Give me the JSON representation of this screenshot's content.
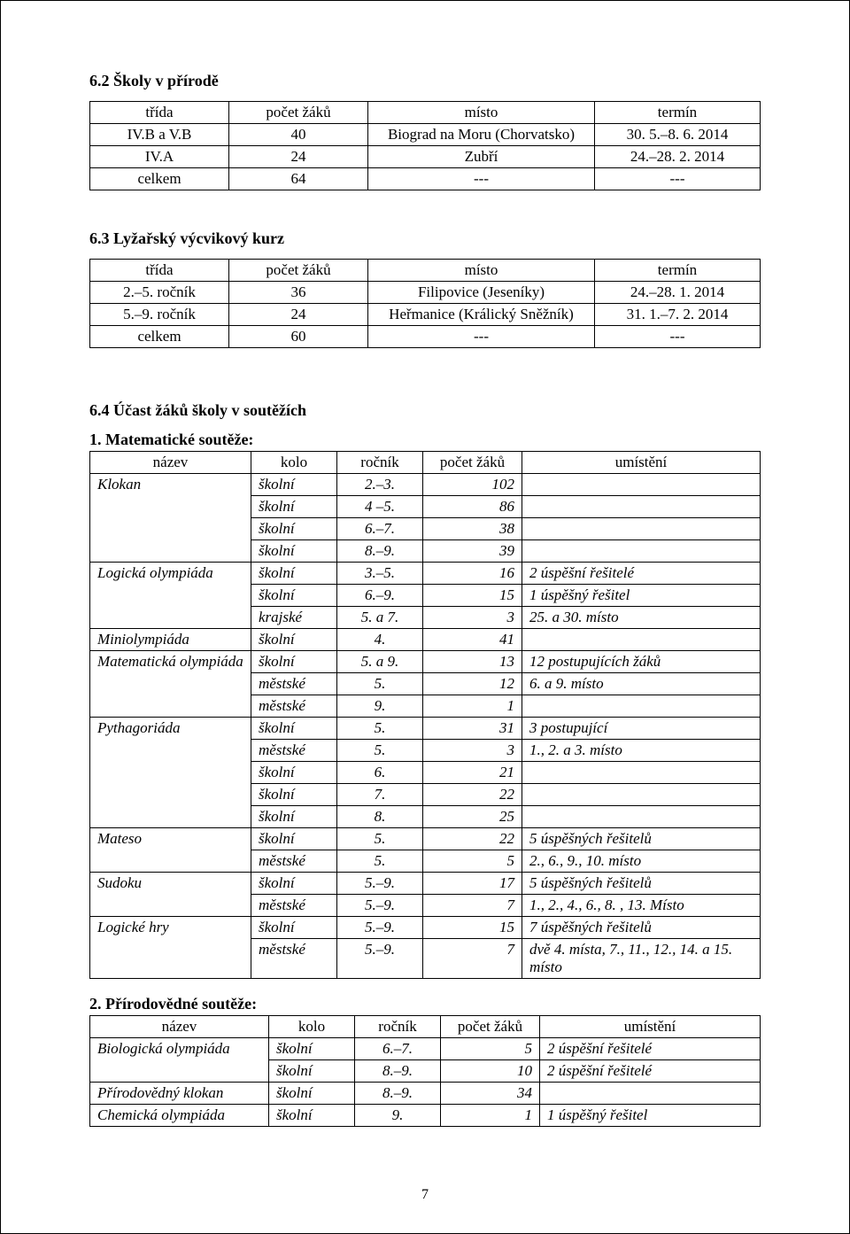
{
  "s62": {
    "title": "6.2 Školy v přírodě",
    "headers": [
      "třída",
      "počet žáků",
      "místo",
      "termín"
    ],
    "rows": [
      [
        "IV.B a V.B",
        "40",
        "Biograd na Moru (Chorvatsko)",
        "30. 5.–8. 6. 2014"
      ],
      [
        "IV.A",
        "24",
        "Zubří",
        "24.–28. 2. 2014"
      ],
      [
        "celkem",
        "64",
        "---",
        "---"
      ]
    ]
  },
  "s63": {
    "title": "6.3 Lyžařský výcvikový kurz",
    "headers": [
      "třída",
      "počet žáků",
      "místo",
      "termín"
    ],
    "rows": [
      [
        "2.–5. ročník",
        "36",
        "Filipovice (Jeseníky)",
        "24.–28. 1. 2014"
      ],
      [
        "5.–9. ročník",
        "24",
        "Heřmanice (Králický Sněžník)",
        "31. 1.–7. 2. 2014"
      ],
      [
        "celkem",
        "60",
        "---",
        "---"
      ]
    ]
  },
  "s64": {
    "title": "6.4 Účast žáků školy v soutěžích",
    "sub1": "1. Matematické soutěže:",
    "headers": [
      "název",
      "kolo",
      "ročník",
      "počet žáků",
      "umístění"
    ],
    "groups": [
      {
        "name": "Klokan",
        "rows": [
          {
            "kolo": "školní",
            "roc": "2.–3.",
            "pz": "102",
            "um": ""
          },
          {
            "kolo": "školní",
            "roc": "4 –5.",
            "pz": "86",
            "um": ""
          },
          {
            "kolo": "školní",
            "roc": "6.–7.",
            "pz": "38",
            "um": ""
          },
          {
            "kolo": "školní",
            "roc": "8.–9.",
            "pz": "39",
            "um": ""
          }
        ]
      },
      {
        "name": "Logická olympiáda",
        "rows": [
          {
            "kolo": "školní",
            "roc": "3.–5.",
            "pz": "16",
            "um": "2 úspěšní řešitelé"
          },
          {
            "kolo": "školní",
            "roc": "6.–9.",
            "pz": "15",
            "um": "1 úspěšný řešitel"
          },
          {
            "kolo": "krajské",
            "roc": "5. a 7.",
            "pz": "3",
            "um": "25. a 30. místo"
          }
        ]
      },
      {
        "name": "Miniolympiáda",
        "rows": [
          {
            "kolo": "školní",
            "roc": "4.",
            "pz": "41",
            "um": ""
          }
        ]
      },
      {
        "name": "Matematická olympiáda",
        "rows": [
          {
            "kolo": "školní",
            "roc": "5. a 9.",
            "pz": "13",
            "um": "12 postupujících žáků"
          },
          {
            "kolo": "městské",
            "roc": "5.",
            "pz": "12",
            "um": "6. a 9. místo"
          },
          {
            "kolo": "městské",
            "roc": "9.",
            "pz": "1",
            "um": ""
          }
        ]
      },
      {
        "name": "Pythagoriáda",
        "rows": [
          {
            "kolo": "školní",
            "roc": "5.",
            "pz": "31",
            "um": "3 postupující"
          },
          {
            "kolo": "městské",
            "roc": "5.",
            "pz": "3",
            "um": "1., 2. a 3. místo"
          },
          {
            "kolo": "školní",
            "roc": "6.",
            "pz": "21",
            "um": ""
          },
          {
            "kolo": "školní",
            "roc": "7.",
            "pz": "22",
            "um": ""
          },
          {
            "kolo": "školní",
            "roc": "8.",
            "pz": "25",
            "um": ""
          }
        ]
      },
      {
        "name": "Mateso",
        "rows": [
          {
            "kolo": "školní",
            "roc": "5.",
            "pz": "22",
            "um": "5  úspěšných řešitelů"
          },
          {
            "kolo": "městské",
            "roc": "5.",
            "pz": "5",
            "um": "2., 6., 9., 10. místo"
          }
        ]
      },
      {
        "name": "Sudoku",
        "rows": [
          {
            "kolo": "školní",
            "roc": "5.–9.",
            "pz": "17",
            "um": "5 úspěšných řešitelů"
          },
          {
            "kolo": "městské",
            "roc": "5.–9.",
            "pz": "7",
            "um": "1., 2., 4., 6., 8. , 13. Místo"
          }
        ]
      },
      {
        "name": "Logické hry",
        "rows": [
          {
            "kolo": "školní",
            "roc": "5.–9.",
            "pz": "15",
            "um": "7 úspěšných řešitelů"
          },
          {
            "kolo": "městské",
            "roc": "5.–9.",
            "pz": "7",
            "um": "dvě 4. místa, 7., 11., 12., 14. a 15. místo"
          }
        ]
      }
    ],
    "sub2": "2. Přírodovědné soutěže:",
    "headers2": [
      "název",
      "kolo",
      "ročník",
      "počet žáků",
      "umístění"
    ],
    "groups2": [
      {
        "name": "Biologická olympiáda",
        "rows": [
          {
            "kolo": "školní",
            "roc": "6.–7.",
            "pz": "5",
            "um": "2  úspěšní řešitelé"
          },
          {
            "kolo": "školní",
            "roc": "8.–9.",
            "pz": "10",
            "um": "2  úspěšní řešitelé"
          }
        ]
      },
      {
        "name": "Přírodovědný klokan",
        "rows": [
          {
            "kolo": "školní",
            "roc": "8.–9.",
            "pz": "34",
            "um": ""
          }
        ]
      },
      {
        "name": "Chemická olympiáda",
        "rows": [
          {
            "kolo": "školní",
            "roc": "9.",
            "pz": "1",
            "um": "1 úspěšný řešitel"
          }
        ]
      }
    ]
  },
  "pagenum": "7"
}
